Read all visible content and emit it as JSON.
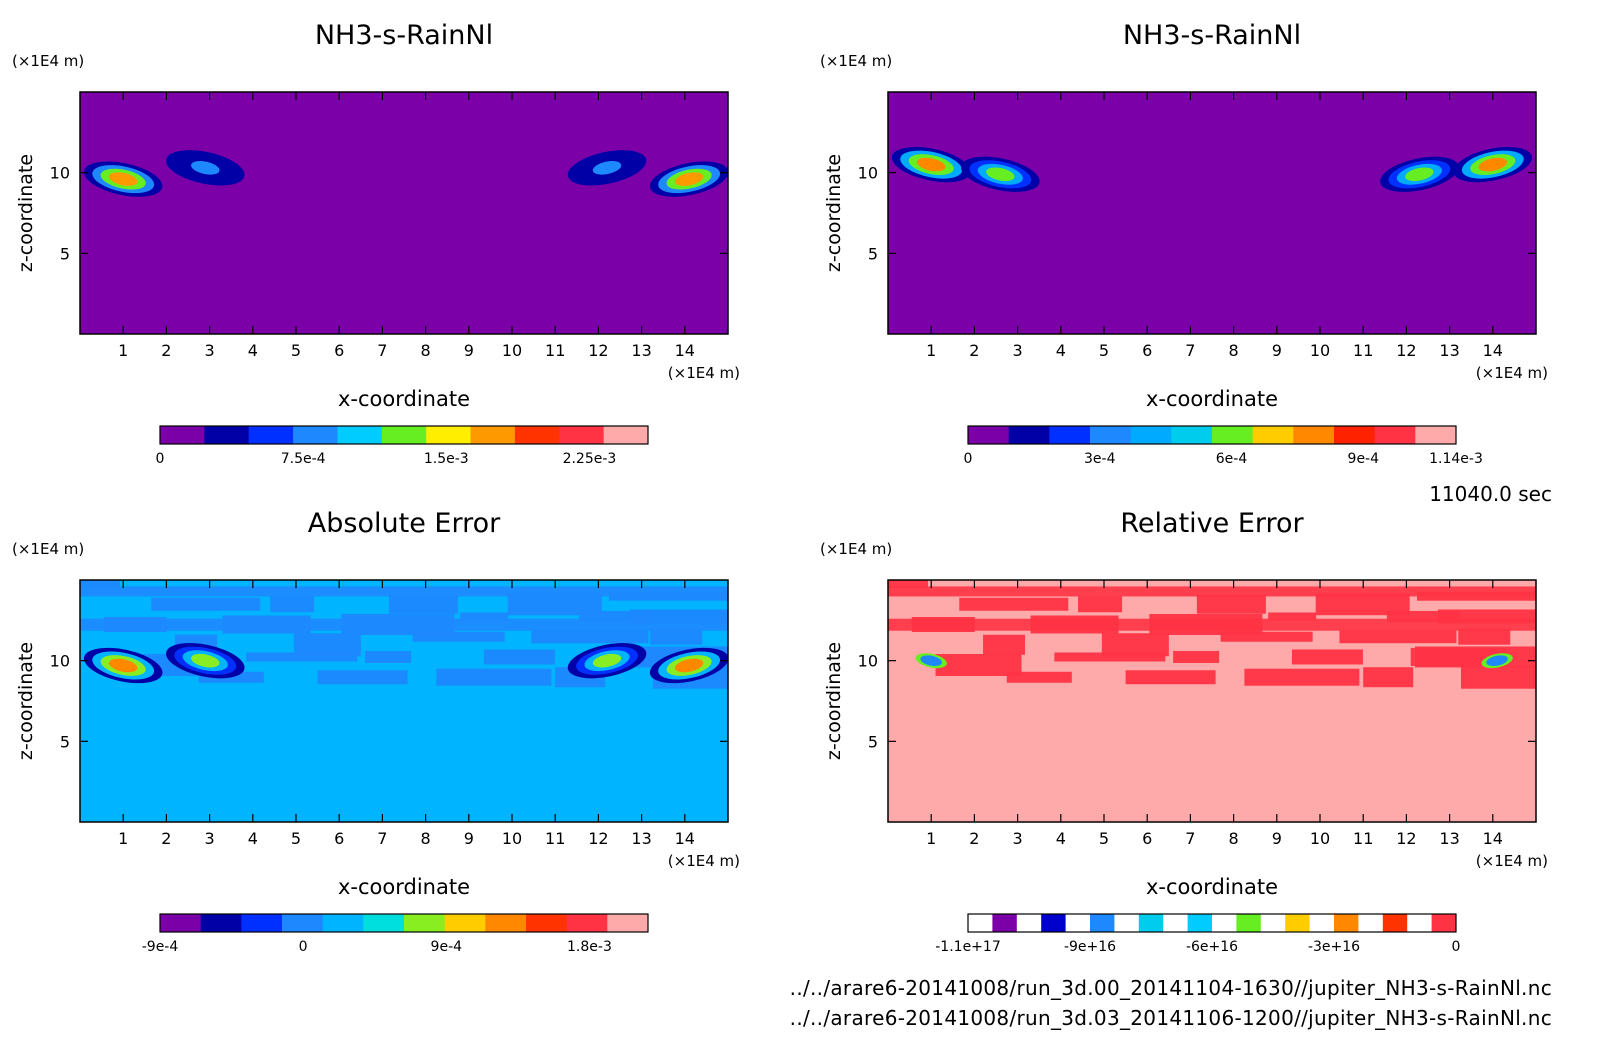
{
  "window": {
    "time_label": "11040.0 sec"
  },
  "footer": {
    "line1": "../../arare6-20141008/run_3d.00_20141104-1630//jupiter_NH3-s-RainNl.nc",
    "line2": "../../arare6-20141008/run_3d.03_20141106-1200//jupiter_NH3-s-RainNl.nc"
  },
  "chart_data": [
    {
      "type": "heatmap",
      "id": "top-left",
      "title": "NH3-s-RainNl",
      "xlabel": "x-coordinate",
      "ylabel": "z-coordinate",
      "x_unit": "(×1E4 m)",
      "y_unit": "(×1E4 m)",
      "xlim": [
        0,
        15
      ],
      "ylim": [
        0,
        15
      ],
      "xticks": [
        "1",
        "2",
        "3",
        "4",
        "5",
        "6",
        "7",
        "8",
        "9",
        "10",
        "11",
        "12",
        "13",
        "14"
      ],
      "yticks": [
        "5",
        "10"
      ],
      "background": "#7b00a8",
      "colorbar": {
        "colors": [
          "#7b00a8",
          "#0000a6",
          "#0030ff",
          "#1e88ff",
          "#00ccff",
          "#66ee22",
          "#ffee00",
          "#ff9900",
          "#ff3300",
          "#ff3344",
          "#ffaaaa"
        ],
        "labels": [
          "0",
          "7.5e-4",
          "1.5e-3",
          "2.25e-3"
        ]
      },
      "features": [
        {
          "x": 1.0,
          "z": 9.6,
          "peak": 0.0022
        },
        {
          "x": 2.9,
          "z": 10.3,
          "peak": 0.0008
        },
        {
          "x": 12.2,
          "z": 10.3,
          "peak": 0.0008
        },
        {
          "x": 14.1,
          "z": 9.6,
          "peak": 0.0022
        }
      ]
    },
    {
      "type": "heatmap",
      "id": "top-right",
      "title": "NH3-s-RainNl",
      "xlabel": "x-coordinate",
      "ylabel": "z-coordinate",
      "x_unit": "(×1E4 m)",
      "y_unit": "(×1E4 m)",
      "xlim": [
        0,
        15
      ],
      "ylim": [
        0,
        15
      ],
      "xticks": [
        "1",
        "2",
        "3",
        "4",
        "5",
        "6",
        "7",
        "8",
        "9",
        "10",
        "11",
        "12",
        "13",
        "14"
      ],
      "yticks": [
        "5",
        "10"
      ],
      "background": "#7b00a8",
      "colorbar": {
        "colors": [
          "#7b00a8",
          "#0000a6",
          "#0030ff",
          "#1e88ff",
          "#00aaff",
          "#00ccee",
          "#66ee22",
          "#ffcc00",
          "#ff8800",
          "#ff2200",
          "#ff3344",
          "#ffaaaa"
        ],
        "labels": [
          "0",
          "3e-4",
          "6e-4",
          "9e-4",
          "1.14e-3"
        ]
      },
      "features": [
        {
          "x": 1.0,
          "z": 10.5,
          "peak": 0.0011
        },
        {
          "x": 2.6,
          "z": 9.9,
          "peak": 0.0008
        },
        {
          "x": 12.3,
          "z": 9.9,
          "peak": 0.0008
        },
        {
          "x": 14.0,
          "z": 10.5,
          "peak": 0.0011
        }
      ]
    },
    {
      "type": "heatmap",
      "id": "bottom-left",
      "title": "Absolute Error",
      "xlabel": "x-coordinate",
      "ylabel": "z-coordinate",
      "x_unit": "(×1E4 m)",
      "y_unit": "(×1E4 m)",
      "xlim": [
        0,
        15
      ],
      "ylim": [
        0,
        15
      ],
      "xticks": [
        "1",
        "2",
        "3",
        "4",
        "5",
        "6",
        "7",
        "8",
        "9",
        "10",
        "11",
        "12",
        "13",
        "14"
      ],
      "yticks": [
        "5",
        "10"
      ],
      "background": "#00b4ff",
      "colorbar": {
        "colors": [
          "#7b00a8",
          "#0000a6",
          "#0030ff",
          "#1e88ff",
          "#00b4ff",
          "#00dddd",
          "#88ee22",
          "#ffcc00",
          "#ff8800",
          "#ff3300",
          "#ff3344",
          "#ffaaaa"
        ],
        "labels": [
          "-9e-4",
          "0",
          "9e-4",
          "1.8e-3"
        ]
      },
      "features": [
        {
          "x": 1.0,
          "z": 9.7,
          "peak": 0.0018
        },
        {
          "x": 2.9,
          "z": 10.0,
          "peak": 0.0012
        },
        {
          "x": 12.2,
          "z": 10.0,
          "peak": 0.0012
        },
        {
          "x": 14.1,
          "z": 9.7,
          "peak": 0.0018
        }
      ]
    },
    {
      "type": "heatmap",
      "id": "bottom-right",
      "title": "Relative Error",
      "xlabel": "x-coordinate",
      "ylabel": "z-coordinate",
      "x_unit": "(×1E4 m)",
      "y_unit": "(×1E4 m)",
      "xlim": [
        0,
        15
      ],
      "ylim": [
        0,
        15
      ],
      "xticks": [
        "1",
        "2",
        "3",
        "4",
        "5",
        "6",
        "7",
        "8",
        "9",
        "10",
        "11",
        "12",
        "13",
        "14"
      ],
      "yticks": [
        "5",
        "10"
      ],
      "background": "#ffaaaa",
      "colorbar": {
        "colors": [
          "#ffffff",
          "#7b00a8",
          "#ffffff",
          "#0000cc",
          "#ffffff",
          "#1e88ff",
          "#ffffff",
          "#00ccee",
          "#ffffff",
          "#00ccff",
          "#ffffff",
          "#66ee22",
          "#ffffff",
          "#ffcc00",
          "#ffffff",
          "#ff8800",
          "#ffffff",
          "#ff3300",
          "#ffffff",
          "#ff3344"
        ],
        "labels": [
          "-1.1e+17",
          "-9e+16",
          "-6e+16",
          "-3e+16",
          "0"
        ]
      },
      "features": [
        {
          "x": 1.0,
          "z": 10.0,
          "peak": 0
        },
        {
          "x": 14.1,
          "z": 10.0,
          "peak": 0
        }
      ]
    }
  ]
}
